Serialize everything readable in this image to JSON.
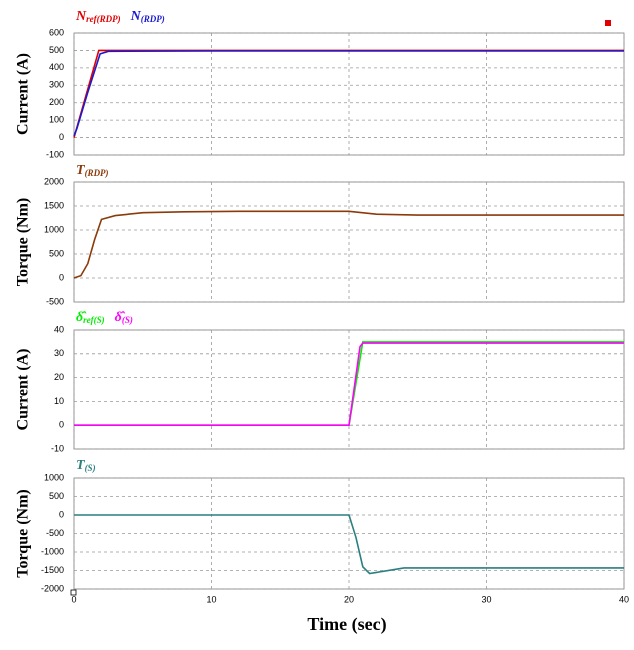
{
  "chart_data": [
    {
      "type": "line",
      "ylabel": "Current  (A)",
      "xlim": [
        0,
        40
      ],
      "xticks": [
        0,
        10,
        20,
        30,
        40
      ],
      "ylim": [
        -100,
        600
      ],
      "yticks": [
        -100,
        0,
        100,
        200,
        300,
        400,
        500,
        600
      ],
      "grid": true,
      "series": [
        {
          "name": "N",
          "subscript": "ref(RDP)",
          "color": "#e00000",
          "x": [
            0,
            1.8,
            40
          ],
          "values": [
            0,
            500,
            500
          ]
        },
        {
          "name": "N",
          "subscript": "(RDP)",
          "color": "#1a1ad0",
          "x": [
            0,
            0.2,
            1,
            1.9,
            2.5,
            10,
            20,
            30,
            40
          ],
          "values": [
            10,
            50,
            260,
            480,
            495,
            497,
            497,
            497,
            497
          ]
        }
      ]
    },
    {
      "type": "line",
      "ylabel": "Torque  (Nm)",
      "xlim": [
        0,
        40
      ],
      "xticks": [
        0,
        10,
        20,
        30,
        40
      ],
      "ylim": [
        -500,
        2000
      ],
      "yticks": [
        -500,
        0,
        500,
        1000,
        1500,
        2000
      ],
      "grid": true,
      "series": [
        {
          "name": "T",
          "subscript": "(RDP)",
          "color": "#8b3a0a",
          "x": [
            0,
            0.5,
            1,
            1.5,
            2,
            3,
            5,
            8,
            12,
            20,
            22,
            25,
            40
          ],
          "values": [
            0,
            50,
            300,
            800,
            1220,
            1300,
            1360,
            1380,
            1390,
            1390,
            1330,
            1310,
            1310
          ]
        }
      ]
    },
    {
      "type": "line",
      "ylabel": "Current  (A)",
      "xlim": [
        0,
        40
      ],
      "xticks": [
        0,
        10,
        20,
        30,
        40
      ],
      "ylim": [
        -10,
        40
      ],
      "yticks": [
        -10,
        0,
        10,
        20,
        30,
        40
      ],
      "grid": true,
      "series": [
        {
          "name": "δ̂",
          "subscript": "ref(S)",
          "color": "#00ee00",
          "x": [
            0,
            20,
            21,
            40
          ],
          "values": [
            0,
            0,
            35,
            35
          ]
        },
        {
          "name": "δ̂",
          "subscript": "(S)",
          "color": "#ff00ff",
          "x": [
            0,
            20,
            20.8,
            21,
            40
          ],
          "values": [
            0,
            0,
            33,
            34.5,
            34.5
          ]
        }
      ]
    },
    {
      "type": "line",
      "ylabel": "Torque  (Nm)",
      "xlabel": "Time  (sec)",
      "xlim": [
        0,
        40
      ],
      "xticks": [
        0,
        10,
        20,
        30,
        40
      ],
      "ylim": [
        -2000,
        1000
      ],
      "yticks": [
        -2000,
        -1500,
        -1000,
        -500,
        0,
        500,
        1000
      ],
      "grid": true,
      "series": [
        {
          "name": "T",
          "subscript": "(S)",
          "color": "#2a7f7f",
          "x": [
            0,
            20,
            20.5,
            21,
            21.5,
            22,
            24,
            26,
            40
          ],
          "values": [
            0,
            0,
            -600,
            -1400,
            -1580,
            -1550,
            -1430,
            -1430,
            -1430
          ]
        }
      ]
    }
  ]
}
